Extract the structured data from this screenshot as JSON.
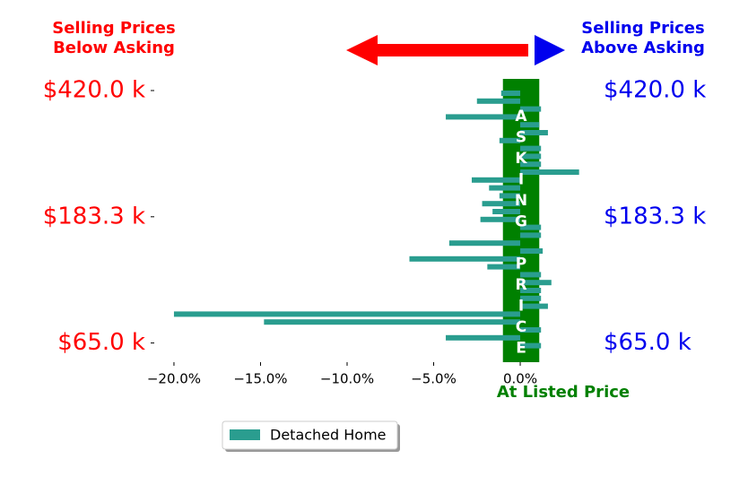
{
  "chart_data": {
    "type": "barh",
    "left_note": [
      "Selling Prices",
      "Below Asking"
    ],
    "right_note": [
      "Selling Prices",
      "Above Asking"
    ],
    "band_label": "ASKING PRICE",
    "x_note": "At Listed Price",
    "categories": [
      "$420.0 k",
      null,
      null,
      null,
      null,
      null,
      null,
      null,
      null,
      null,
      null,
      null,
      null,
      null,
      null,
      null,
      "$183.3 k",
      null,
      null,
      null,
      null,
      null,
      null,
      null,
      null,
      null,
      null,
      null,
      null,
      null,
      null,
      null,
      "$65.0 k"
    ],
    "series": [
      {
        "name": "Detached Home",
        "color": "#2a9d8f",
        "values": [
          -1.1,
          -2.5,
          1.2,
          -4.3,
          1.1,
          1.6,
          -1.2,
          1.2,
          1.2,
          1.2,
          3.4,
          -2.8,
          -1.8,
          -1.2,
          -2.2,
          -1.6,
          -2.3,
          1.2,
          1.2,
          -4.1,
          1.3,
          -6.4,
          -1.9,
          1.2,
          1.8,
          1.2,
          1.2,
          1.6,
          -20.0,
          -14.8,
          1.2,
          -4.3,
          1.2
        ]
      }
    ],
    "xlim": [
      -21.5,
      3.5
    ],
    "xticks": [
      {
        "value": -20,
        "label": "−20.0%"
      },
      {
        "value": -15,
        "label": "−15.0%"
      },
      {
        "value": -10,
        "label": "−10.0%"
      },
      {
        "value": -5,
        "label": "−5.0%"
      },
      {
        "value": 0,
        "label": "0.0%"
      }
    ],
    "left_label_color": "#ff0000",
    "right_label_color": "#0000ee",
    "band_color": "#008000"
  }
}
